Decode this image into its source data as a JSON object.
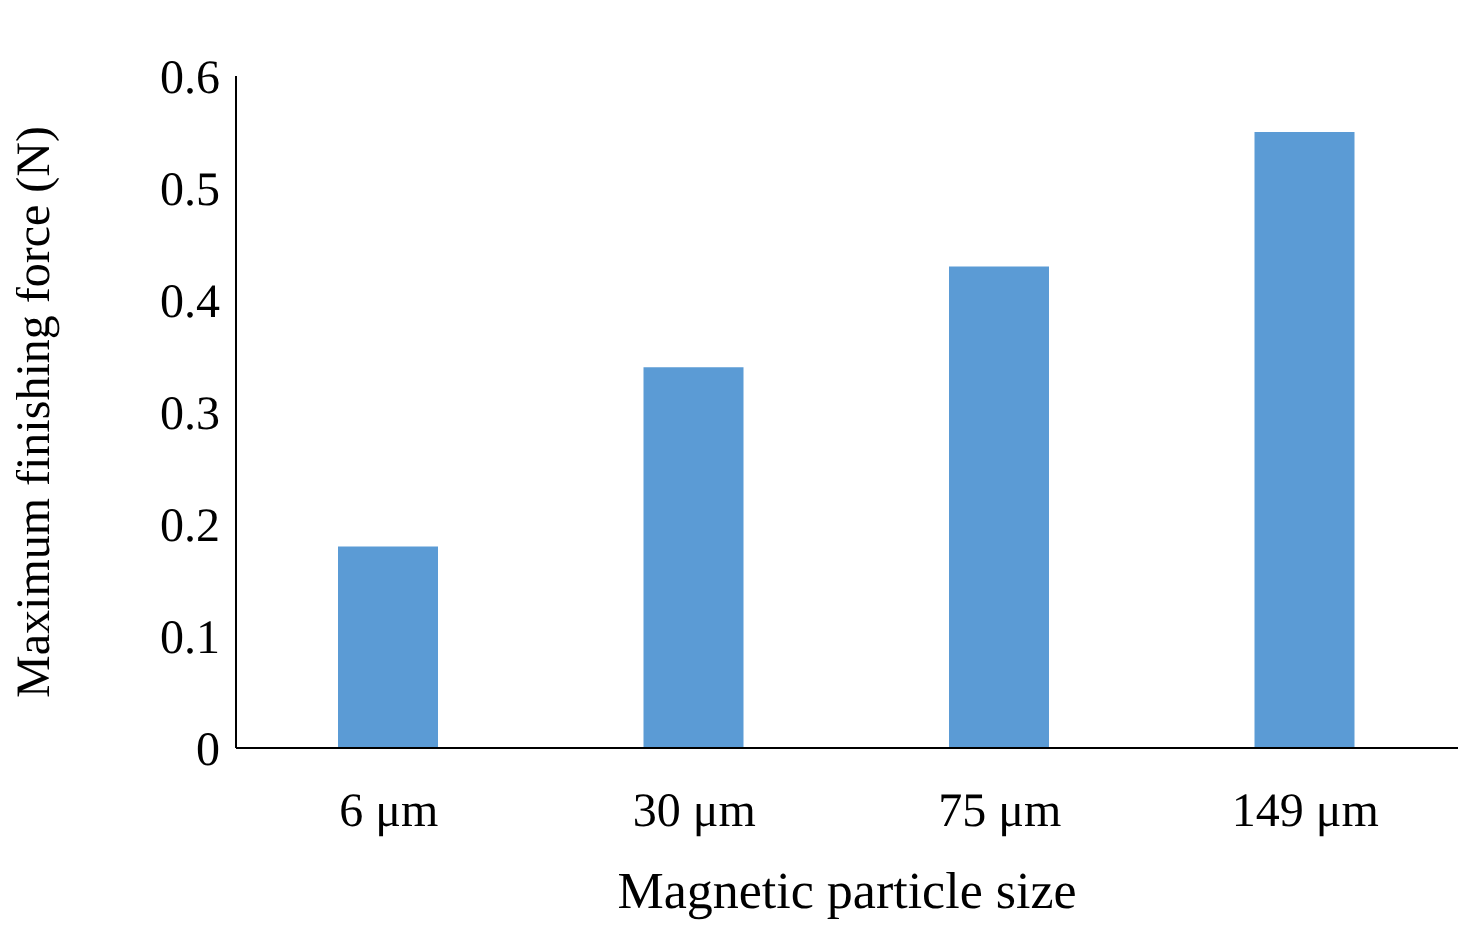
{
  "chart_data": {
    "type": "bar",
    "xlabel": "Magnetic particle size",
    "ylabel": "Maximum finishing force (N)",
    "categories": [
      "6 μm",
      "30 μm",
      "75 μm",
      "149 μm"
    ],
    "values": [
      0.18,
      0.34,
      0.43,
      0.55
    ],
    "color": "#5b9bd5",
    "ylim": [
      0,
      0.6
    ],
    "yticks": [
      0,
      0.1,
      0.2,
      0.3,
      0.4,
      0.5,
      0.6
    ],
    "grid": false,
    "legend": false
  }
}
